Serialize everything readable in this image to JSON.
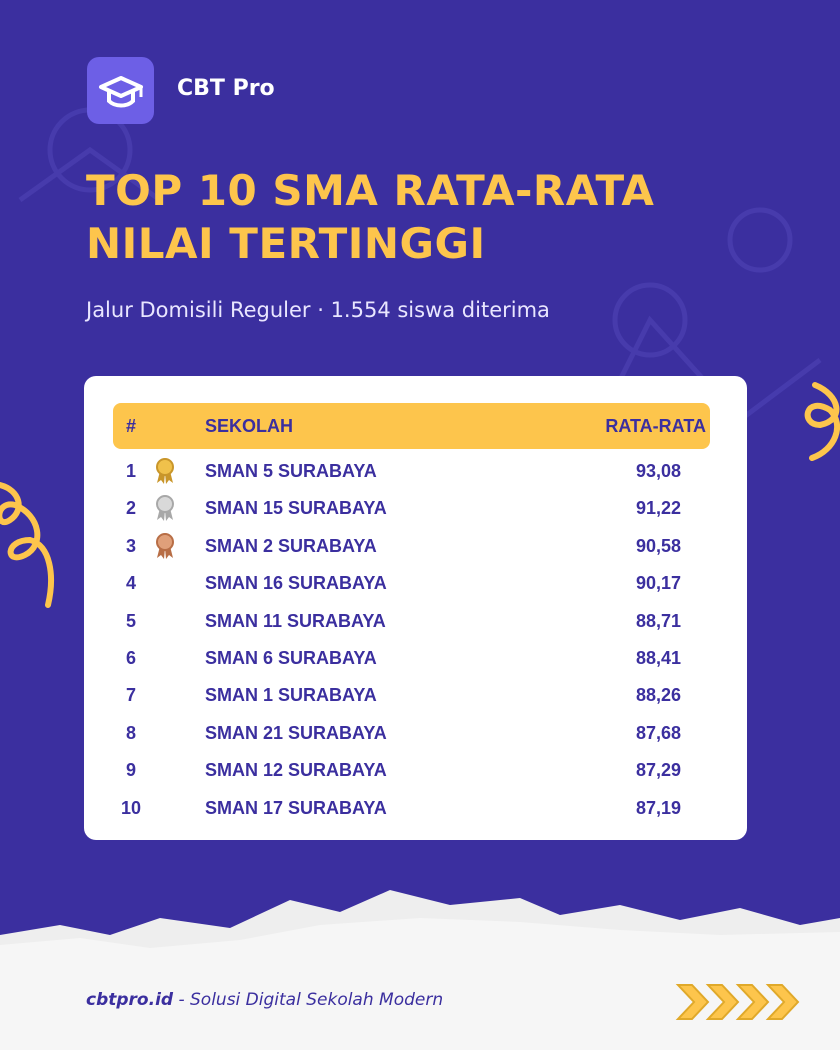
{
  "brand": "CBT Pro",
  "title": [
    "TOP 10 SMA RATA-RATA",
    "NILAI TERTINGGI"
  ],
  "subtitle": "Jalur Domisili Reguler · 1.554 siswa diterima",
  "table": {
    "header": [
      "#",
      "SEKOLAH",
      "RATA-RATA"
    ],
    "rows": [
      [
        "1",
        "SMAN 5 SURABAYA",
        "93,08"
      ],
      [
        "2",
        "SMAN 15 SURABAYA",
        "91,22"
      ],
      [
        "3",
        "SMAN 2 SURABAYA",
        "90,58"
      ],
      [
        "4",
        "SMAN 16 SURABAYA",
        "90,17"
      ],
      [
        "5",
        "SMAN 11 SURABAYA",
        "88,71"
      ],
      [
        "6",
        "SMAN 6 SURABAYA",
        "88,41"
      ],
      [
        "7",
        "SMAN 1 SURABAYA",
        "88,26"
      ],
      [
        "8",
        "SMAN 21 SURABAYA",
        "87,68"
      ],
      [
        "9",
        "SMAN 12 SURABAYA",
        "87,29"
      ],
      [
        "10",
        "SMAN 17 SURABAYA",
        "87,19"
      ]
    ]
  },
  "footer": {
    "site": "cbtpro.id",
    "tagline": "- Solusi Digital Sekolah Modern"
  }
}
